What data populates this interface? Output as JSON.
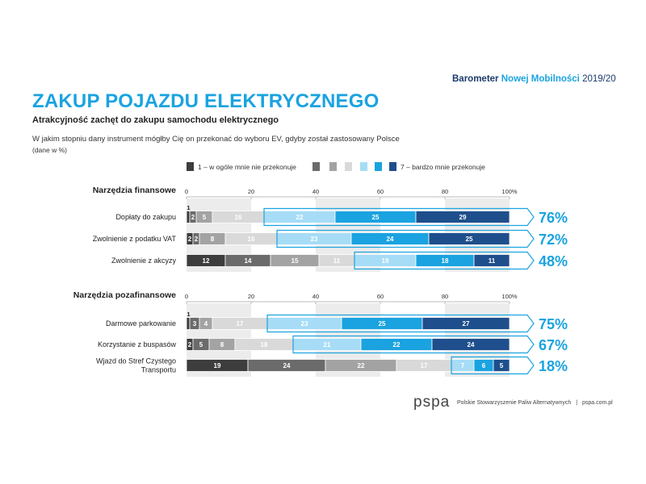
{
  "header": {
    "brand_part1": "Barometer",
    "brand_part2": "Nowej Mobilności",
    "brand_part3": "2019/20",
    "title": "ZAKUP POJAZDU ELEKTRYCZNEGO",
    "subtitle": "Atrakcyjność zachęt do zakupu samochodu elektrycznego",
    "question": "W jakim stopniu dany instrument mógłby Cię on przekonać do wyboru EV, gdyby został zastosowany Polsce",
    "unit_note": "(dane w %)"
  },
  "legend": {
    "first_label": "1 – w ogóle mnie nie przekonuje",
    "last_label": "7 – bardzo mnie przekonuje"
  },
  "colors": {
    "scale": [
      "#3d3d3d",
      "#6b6b6b",
      "#a3a3a3",
      "#d9d9d9",
      "#a6dcf6",
      "#1aa3e0",
      "#1e4f8c"
    ],
    "accent": "#1aa3e0",
    "band": "#ececec"
  },
  "footer": {
    "logo": "pspa",
    "org": "Polskie Stowarzyszenie Paliw Alternatywnych",
    "separator": "|",
    "url": "pspa.com.pl"
  },
  "chart_data": [
    {
      "type": "bar",
      "stacked": true,
      "orientation": "horizontal",
      "title": "Narzędzia finansowe",
      "x_ticks": [
        "0",
        "20",
        "40",
        "60",
        "80",
        "100%"
      ],
      "xlim": [
        0,
        100
      ],
      "categories": [
        "Dopłaty do zakupu",
        "Zwolnienie z podatku VAT",
        "Zwolnienie z akcyzy"
      ],
      "series": [
        {
          "name": "1 – w ogóle mnie nie przekonuje",
          "values": [
            1,
            2,
            12
          ]
        },
        {
          "values": [
            2,
            2,
            14
          ]
        },
        {
          "values": [
            5,
            8,
            15
          ]
        },
        {
          "values": [
            16,
            16,
            11
          ]
        },
        {
          "values": [
            22,
            23,
            19
          ]
        },
        {
          "values": [
            25,
            24,
            18
          ]
        },
        {
          "name": "7 – bardzo mnie przekonuje",
          "values": [
            29,
            25,
            11
          ]
        }
      ],
      "top3_totals": [
        "76%",
        "72%",
        "48%"
      ]
    },
    {
      "type": "bar",
      "stacked": true,
      "orientation": "horizontal",
      "title": "Narzędzia pozafinansowe",
      "x_ticks": [
        "0",
        "20",
        "40",
        "60",
        "80",
        "100%"
      ],
      "xlim": [
        0,
        100
      ],
      "categories": [
        "Darmowe parkowanie",
        "Korzystanie z buspasów",
        "Wjazd do Stref Czystego Transportu"
      ],
      "series": [
        {
          "name": "1 – w ogóle mnie nie przekonuje",
          "values": [
            1,
            2,
            19
          ]
        },
        {
          "values": [
            3,
            5,
            24
          ]
        },
        {
          "values": [
            4,
            8,
            22
          ]
        },
        {
          "values": [
            17,
            18,
            17
          ]
        },
        {
          "values": [
            23,
            21,
            7
          ]
        },
        {
          "values": [
            25,
            22,
            6
          ]
        },
        {
          "name": "7 – bardzo mnie przekonuje",
          "values": [
            27,
            24,
            5
          ]
        }
      ],
      "top3_totals": [
        "75%",
        "67%",
        "18%"
      ]
    }
  ]
}
